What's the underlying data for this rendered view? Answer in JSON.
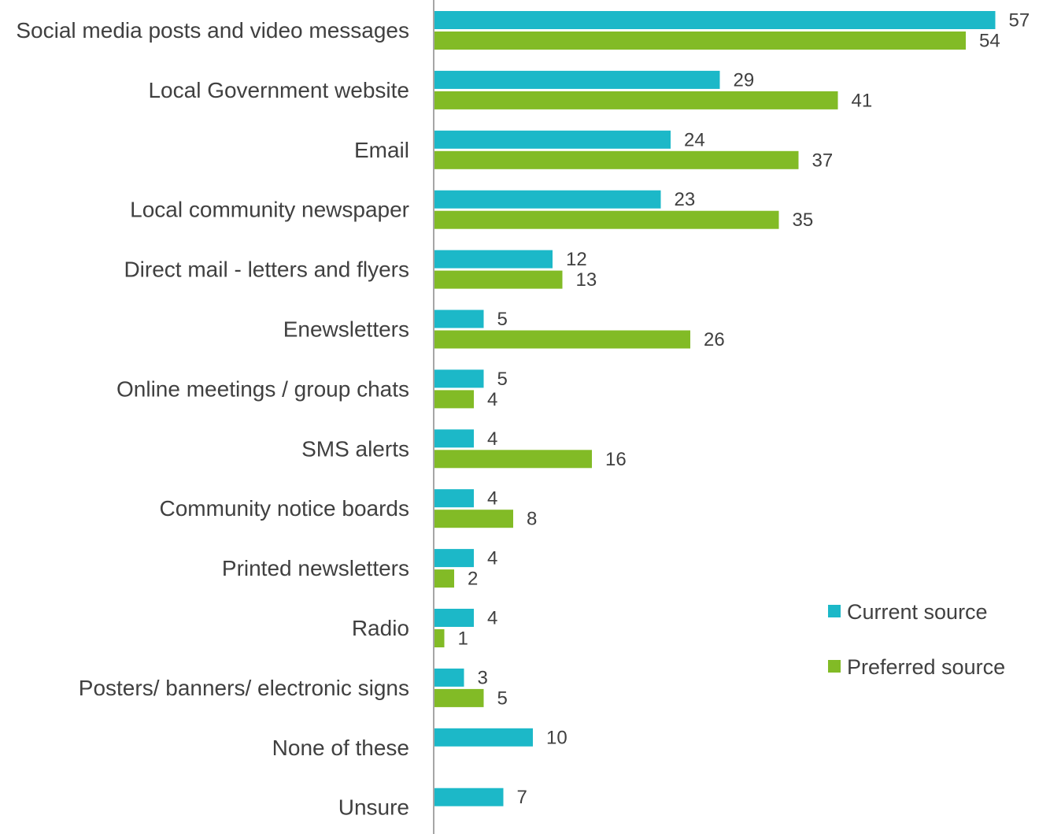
{
  "chart_data": {
    "type": "bar",
    "orientation": "horizontal",
    "categories": [
      "Social media posts and video messages",
      "Local Government website",
      "Email",
      "Local community newspaper",
      "Direct mail - letters and flyers",
      "Enewsletters",
      "Online meetings / group chats",
      "SMS alerts",
      "Community notice boards",
      "Printed newsletters",
      "Radio",
      "Posters/ banners/ electronic signs",
      "None of these",
      "Unsure"
    ],
    "series": [
      {
        "name": "Current source",
        "color": "#1cb8c8",
        "values": [
          57,
          29,
          24,
          23,
          12,
          5,
          5,
          4,
          4,
          4,
          4,
          3,
          10,
          7
        ]
      },
      {
        "name": "Preferred source",
        "color": "#82bb26",
        "values": [
          54,
          41,
          37,
          35,
          13,
          26,
          4,
          16,
          8,
          2,
          1,
          5,
          null,
          null
        ]
      }
    ],
    "title": "",
    "xlabel": "",
    "ylabel": "",
    "xlim": [
      0,
      60
    ],
    "grid": false,
    "legend_position": "right"
  }
}
